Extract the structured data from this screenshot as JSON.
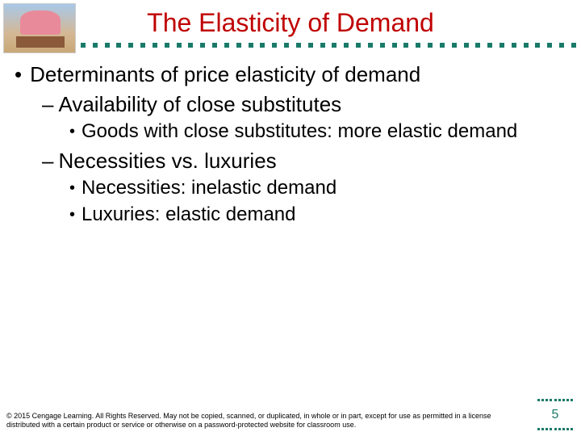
{
  "title": {
    "text": "The Elasticity of Demand",
    "color": "#c00000"
  },
  "divider": {
    "dot_color": "#1a7a69",
    "dot_count": 42
  },
  "bullets": {
    "level1": [
      {
        "marker": "•",
        "text": "Determinants of price elasticity of demand"
      }
    ],
    "level2": [
      {
        "marker": "–",
        "text": "Availability of close substitutes"
      },
      {
        "marker": "–",
        "text": "Necessities vs. luxuries"
      }
    ],
    "level3_group1": [
      {
        "marker": "•",
        "text": "Goods with close substitutes: more elastic demand"
      }
    ],
    "level3_group2": [
      {
        "marker": "•",
        "text": "Necessities: inelastic demand"
      },
      {
        "marker": "•",
        "text": "Luxuries: elastic demand"
      }
    ]
  },
  "footer": {
    "text": "© 2015 Cengage Learning. All Rights Reserved. May not be copied, scanned, or duplicated, in whole or in part, except for use as permitted in a license distributed with a certain product or service or otherwise on a password-protected website for classroom use."
  },
  "page_number": {
    "value": "5",
    "dot_color": "#1a7a69",
    "dot_count_per_row": 9
  }
}
